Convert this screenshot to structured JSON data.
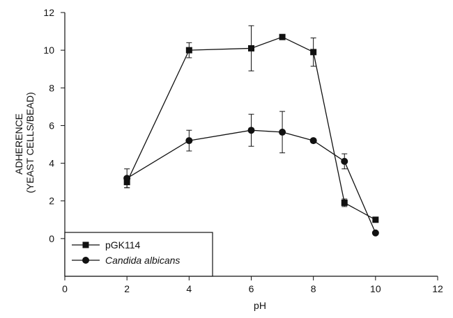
{
  "chart_data": {
    "type": "line",
    "title": "",
    "xlabel": "pH",
    "ylabel_lines": [
      "ADHERENCE",
      "(YEAST CELLS/BEAD)"
    ],
    "xlim": [
      0,
      12
    ],
    "ylim": [
      -2,
      12
    ],
    "x_ticks": [
      0,
      2,
      4,
      6,
      8,
      10,
      12
    ],
    "y_ticks": [
      0,
      2,
      4,
      6,
      8,
      10,
      12
    ],
    "grid": false,
    "legend_position": "bottom-left",
    "series": [
      {
        "name": "pGK114",
        "italic": false,
        "marker": "square",
        "color": "#111111",
        "x": [
          2,
          4,
          6,
          7,
          8,
          9,
          10
        ],
        "y": [
          3.0,
          10.0,
          10.1,
          10.7,
          9.9,
          1.9,
          1.0
        ],
        "err": [
          0.3,
          0.4,
          1.2,
          0.1,
          0.75,
          0.2,
          0.05
        ]
      },
      {
        "name": "Candida albicans",
        "italic": true,
        "marker": "circle",
        "color": "#111111",
        "x": [
          2,
          4,
          6,
          7,
          8,
          9,
          10
        ],
        "y": [
          3.2,
          5.2,
          5.75,
          5.65,
          5.2,
          4.1,
          0.3
        ],
        "err": [
          0.5,
          0.55,
          0.85,
          1.1,
          0.1,
          0.4,
          0.05
        ]
      }
    ]
  }
}
